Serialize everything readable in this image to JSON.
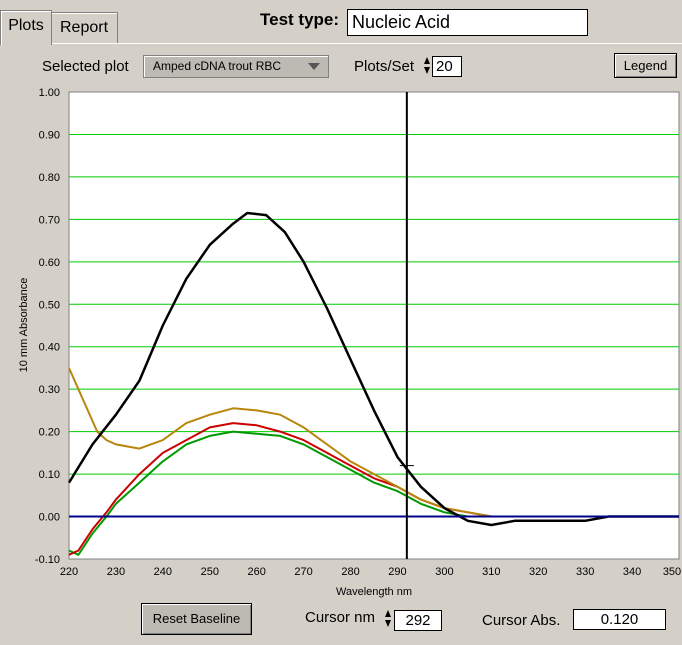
{
  "tabs": [
    {
      "label": "Plots",
      "active": true
    },
    {
      "label": "Report",
      "active": false
    }
  ],
  "test_type": {
    "label": "Test type:",
    "value": "Nucleic Acid"
  },
  "selected_plot": {
    "label": "Selected plot",
    "value": "Amped cDNA trout RBC"
  },
  "plots_per_set": {
    "label": "Plots/Set",
    "value": "20"
  },
  "legend_label": "Legend",
  "reset_baseline_label": "Reset Baseline",
  "cursor_nm": {
    "label": "Cursor nm",
    "value": "292"
  },
  "cursor_abs": {
    "label": "Cursor Abs.",
    "value": "0.120"
  },
  "colors": {
    "grid": "#00cc00",
    "baseline": "#00008b",
    "cursor": "#000000"
  },
  "chart_data": {
    "type": "line",
    "title": "",
    "xlabel": "Wavelength nm",
    "ylabel": "10 mm Absorbance",
    "xlim": [
      220,
      350
    ],
    "ylim": [
      -0.1,
      1.0
    ],
    "xticks": [
      "220",
      "230",
      "240",
      "250",
      "260",
      "270",
      "280",
      "290",
      "300",
      "310",
      "320",
      "330",
      "340",
      "350"
    ],
    "yticks": [
      "-0.10",
      "0.00",
      "0.10",
      "0.20",
      "0.30",
      "0.40",
      "0.50",
      "0.60",
      "0.70",
      "0.80",
      "0.90",
      "1.00"
    ],
    "grid": true,
    "cursor_x": 292,
    "series": [
      {
        "color": "#000000",
        "x": [
          220,
          225,
          230,
          235,
          240,
          245,
          250,
          255,
          258,
          262,
          266,
          270,
          275,
          280,
          285,
          290,
          295,
          300,
          305,
          310,
          315,
          320,
          325,
          330,
          335,
          340,
          345,
          350
        ],
        "y": [
          0.08,
          0.17,
          0.24,
          0.32,
          0.45,
          0.56,
          0.64,
          0.69,
          0.715,
          0.71,
          0.67,
          0.6,
          0.49,
          0.37,
          0.25,
          0.14,
          0.07,
          0.02,
          -0.01,
          -0.02,
          -0.01,
          -0.01,
          -0.01,
          -0.01,
          0.0,
          0.0,
          0.0,
          0.0
        ]
      },
      {
        "color": "#b8860b",
        "x": [
          220,
          222,
          224,
          226,
          228,
          230,
          235,
          240,
          245,
          250,
          255,
          260,
          265,
          270,
          275,
          280,
          285,
          290,
          295,
          300,
          305,
          310,
          320,
          330,
          340,
          350
        ],
        "y": [
          0.35,
          0.3,
          0.25,
          0.2,
          0.18,
          0.17,
          0.16,
          0.18,
          0.22,
          0.24,
          0.255,
          0.25,
          0.24,
          0.21,
          0.17,
          0.13,
          0.1,
          0.07,
          0.04,
          0.02,
          0.01,
          0.0,
          0.0,
          0.0,
          0.0,
          0.0
        ]
      },
      {
        "color": "#cc0000",
        "x": [
          220,
          222,
          225,
          228,
          230,
          235,
          240,
          245,
          250,
          255,
          260,
          265,
          270,
          275,
          280,
          285,
          290,
          295,
          300,
          305,
          310,
          320,
          330,
          340,
          350
        ],
        "y": [
          -0.09,
          -0.08,
          -0.03,
          0.01,
          0.04,
          0.1,
          0.15,
          0.18,
          0.21,
          0.22,
          0.215,
          0.2,
          0.18,
          0.15,
          0.12,
          0.09,
          0.07,
          0.04,
          0.02,
          0.01,
          0.0,
          0.0,
          0.0,
          0.0,
          0.0
        ]
      },
      {
        "color": "#009900",
        "x": [
          220,
          222,
          225,
          228,
          230,
          235,
          240,
          245,
          250,
          255,
          260,
          265,
          270,
          275,
          280,
          285,
          290,
          295,
          300,
          305,
          310,
          320,
          330,
          340,
          350
        ],
        "y": [
          -0.08,
          -0.09,
          -0.04,
          0.0,
          0.03,
          0.08,
          0.13,
          0.17,
          0.19,
          0.2,
          0.195,
          0.19,
          0.17,
          0.14,
          0.11,
          0.08,
          0.06,
          0.03,
          0.01,
          0.0,
          0.0,
          0.0,
          0.0,
          0.0,
          0.0
        ]
      }
    ]
  }
}
